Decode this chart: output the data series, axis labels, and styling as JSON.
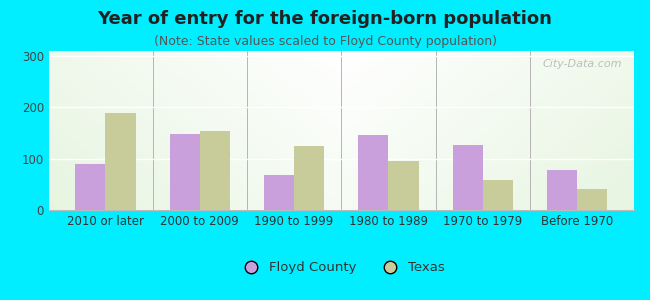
{
  "title": "Year of entry for the foreign-born population",
  "subtitle": "(Note: State values scaled to Floyd County population)",
  "categories": [
    "2010 or later",
    "2000 to 2009",
    "1990 to 1999",
    "1980 to 1989",
    "1970 to 1979",
    "Before 1970"
  ],
  "floyd_county": [
    90,
    148,
    68,
    147,
    127,
    78
  ],
  "texas": [
    190,
    155,
    125,
    95,
    58,
    40
  ],
  "floyd_color": "#c9a0dc",
  "texas_color": "#c8cc9a",
  "background_outer": "#00eeff",
  "ylim": [
    0,
    310
  ],
  "yticks": [
    0,
    100,
    200,
    300
  ],
  "bar_width": 0.32,
  "legend_floyd": "Floyd County",
  "legend_texas": "Texas",
  "title_fontsize": 13,
  "subtitle_fontsize": 9,
  "axis_label_fontsize": 8.5,
  "legend_fontsize": 9.5
}
